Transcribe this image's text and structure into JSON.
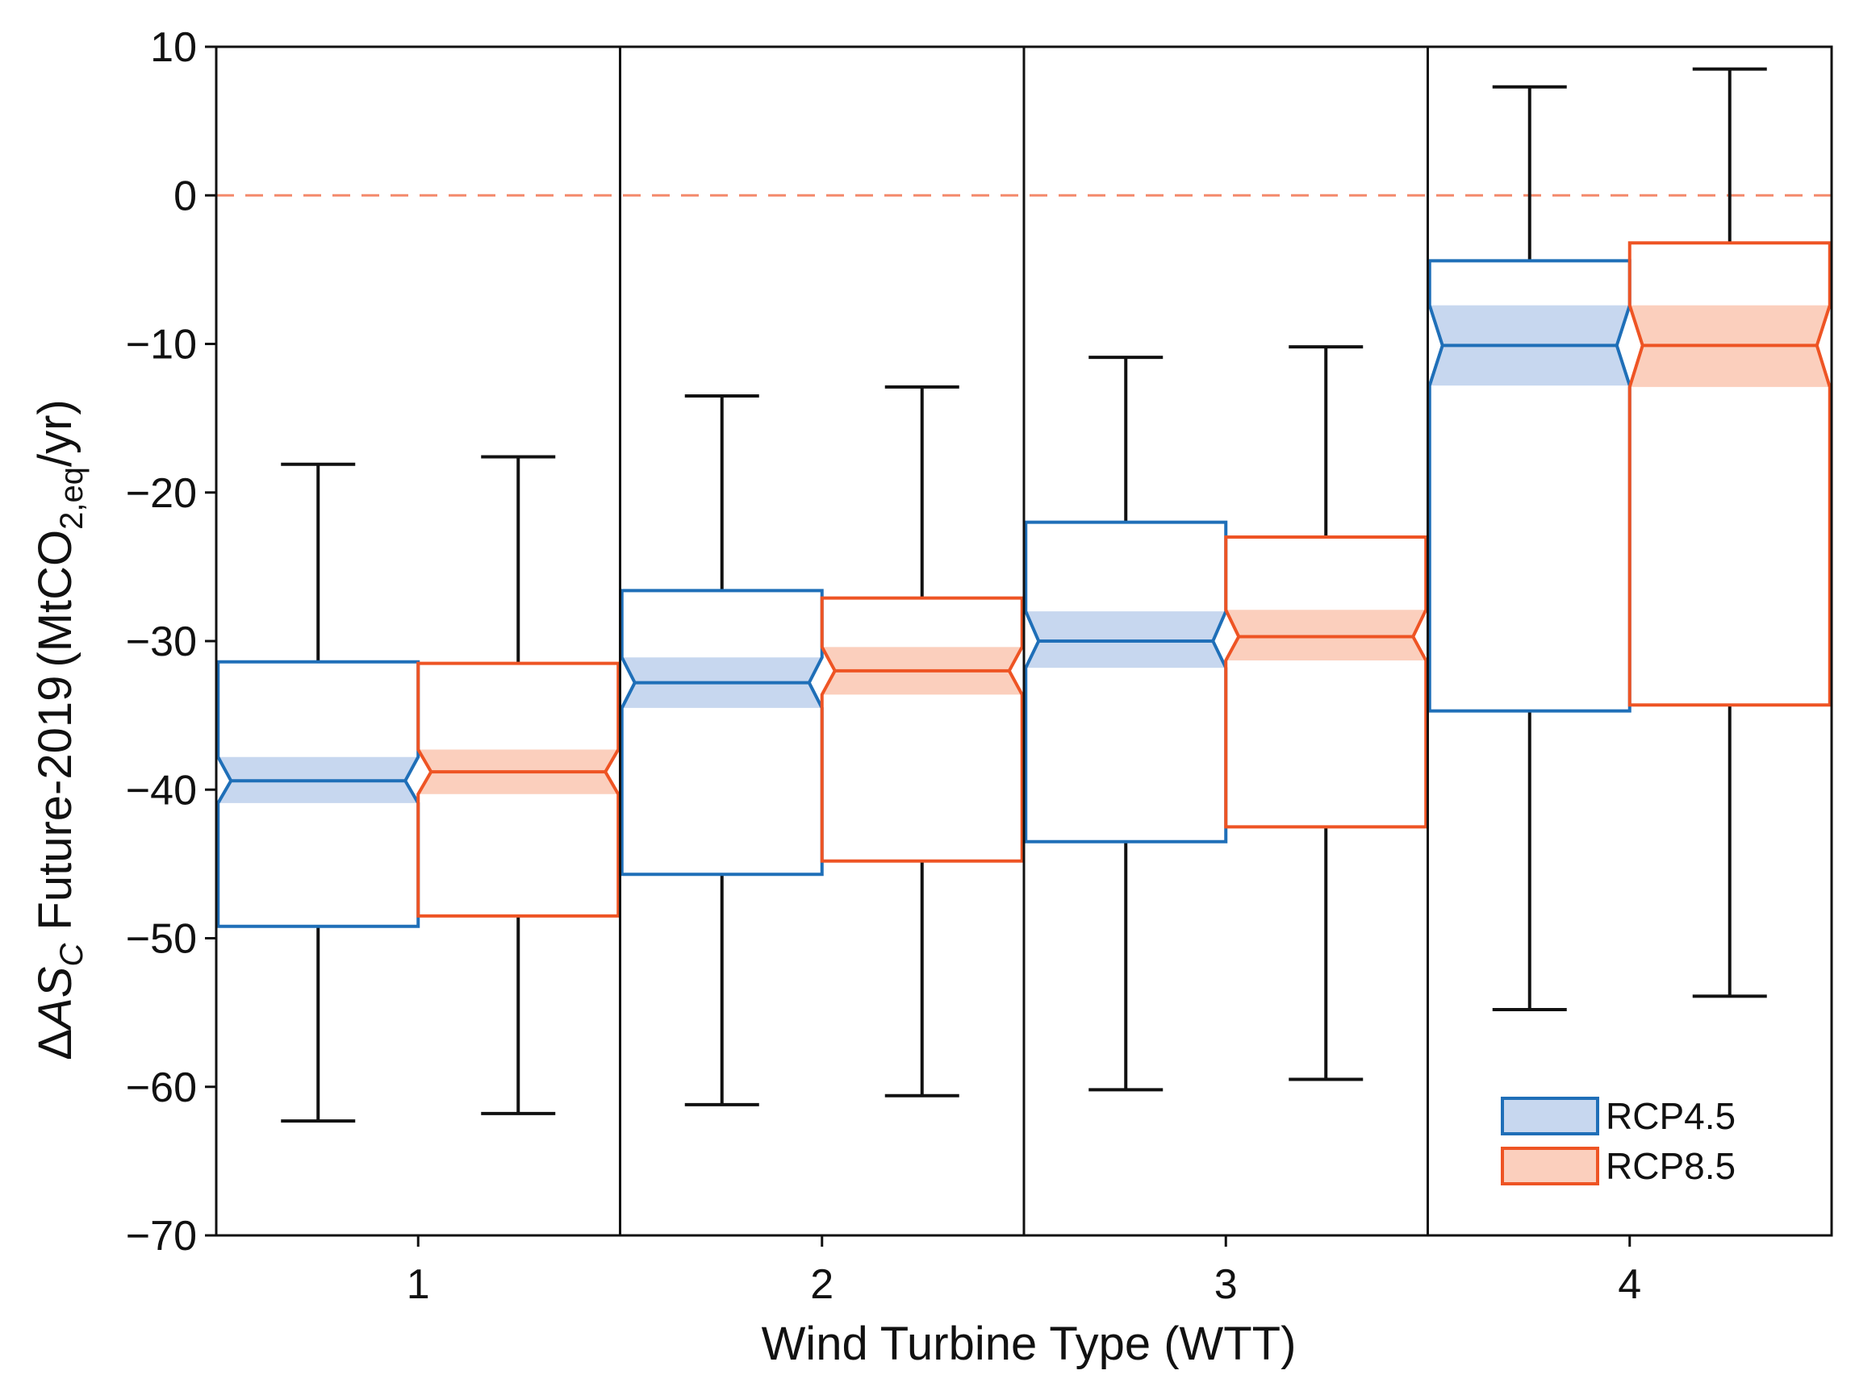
{
  "chart_data": {
    "type": "boxplot",
    "title": "",
    "xlabel": "Wind Turbine Type (WTT)",
    "ylabel": {
      "delta": "Δ",
      "as": "AS",
      "as_sub": "C",
      "period": " Future-2019",
      "unit_open": "(MtCO",
      "unit_sub": "2,eq",
      "unit_close": "/yr)"
    },
    "ylim": [
      -70,
      10
    ],
    "yticks": [
      10,
      0,
      -10,
      -20,
      -30,
      -40,
      -50,
      -60,
      -70
    ],
    "ytick_labels": [
      "10",
      "0",
      "−10",
      "−20",
      "−30",
      "−40",
      "−50",
      "−60",
      "−70"
    ],
    "categories": [
      "1",
      "2",
      "3",
      "4"
    ],
    "reference_line": {
      "y": 0,
      "style": "dashed",
      "color": "#f4896b"
    },
    "grid": false,
    "legend_position": "bottom-right",
    "colors": {
      "RCP4.5": {
        "edge": "#1f6fb8",
        "fill": "#c7d7ef"
      },
      "RCP8.5": {
        "edge": "#ee5424",
        "fill": "#fbcfbd"
      }
    },
    "series": [
      {
        "name": "RCP4.5",
        "boxes": [
          {
            "whisker_low": -62.3,
            "q1": -49.2,
            "notch_low": -40.9,
            "median": -39.4,
            "notch_high": -37.8,
            "q3": -31.4,
            "whisker_high": -18.1
          },
          {
            "whisker_low": -61.2,
            "q1": -45.7,
            "notch_low": -34.5,
            "median": -32.8,
            "notch_high": -31.1,
            "q3": -26.6,
            "whisker_high": -13.5
          },
          {
            "whisker_low": -60.2,
            "q1": -43.5,
            "notch_low": -31.8,
            "median": -30.0,
            "notch_high": -28.0,
            "q3": -22.0,
            "whisker_high": -10.9
          },
          {
            "whisker_low": -54.8,
            "q1": -34.7,
            "notch_low": -12.8,
            "median": -10.1,
            "notch_high": -7.4,
            "q3": -4.4,
            "whisker_high": 7.3
          }
        ]
      },
      {
        "name": "RCP8.5",
        "boxes": [
          {
            "whisker_low": -61.8,
            "q1": -48.5,
            "notch_low": -40.3,
            "median": -38.8,
            "notch_high": -37.3,
            "q3": -31.5,
            "whisker_high": -17.6
          },
          {
            "whisker_low": -60.6,
            "q1": -44.8,
            "notch_low": -33.6,
            "median": -32.0,
            "notch_high": -30.4,
            "q3": -27.1,
            "whisker_high": -12.9
          },
          {
            "whisker_low": -59.5,
            "q1": -42.5,
            "notch_low": -31.3,
            "median": -29.7,
            "notch_high": -27.9,
            "q3": -23.0,
            "whisker_high": -10.2
          },
          {
            "whisker_low": -53.9,
            "q1": -34.3,
            "notch_low": -12.9,
            "median": -10.1,
            "notch_high": -7.4,
            "q3": -3.2,
            "whisker_high": 8.5
          }
        ]
      }
    ]
  }
}
